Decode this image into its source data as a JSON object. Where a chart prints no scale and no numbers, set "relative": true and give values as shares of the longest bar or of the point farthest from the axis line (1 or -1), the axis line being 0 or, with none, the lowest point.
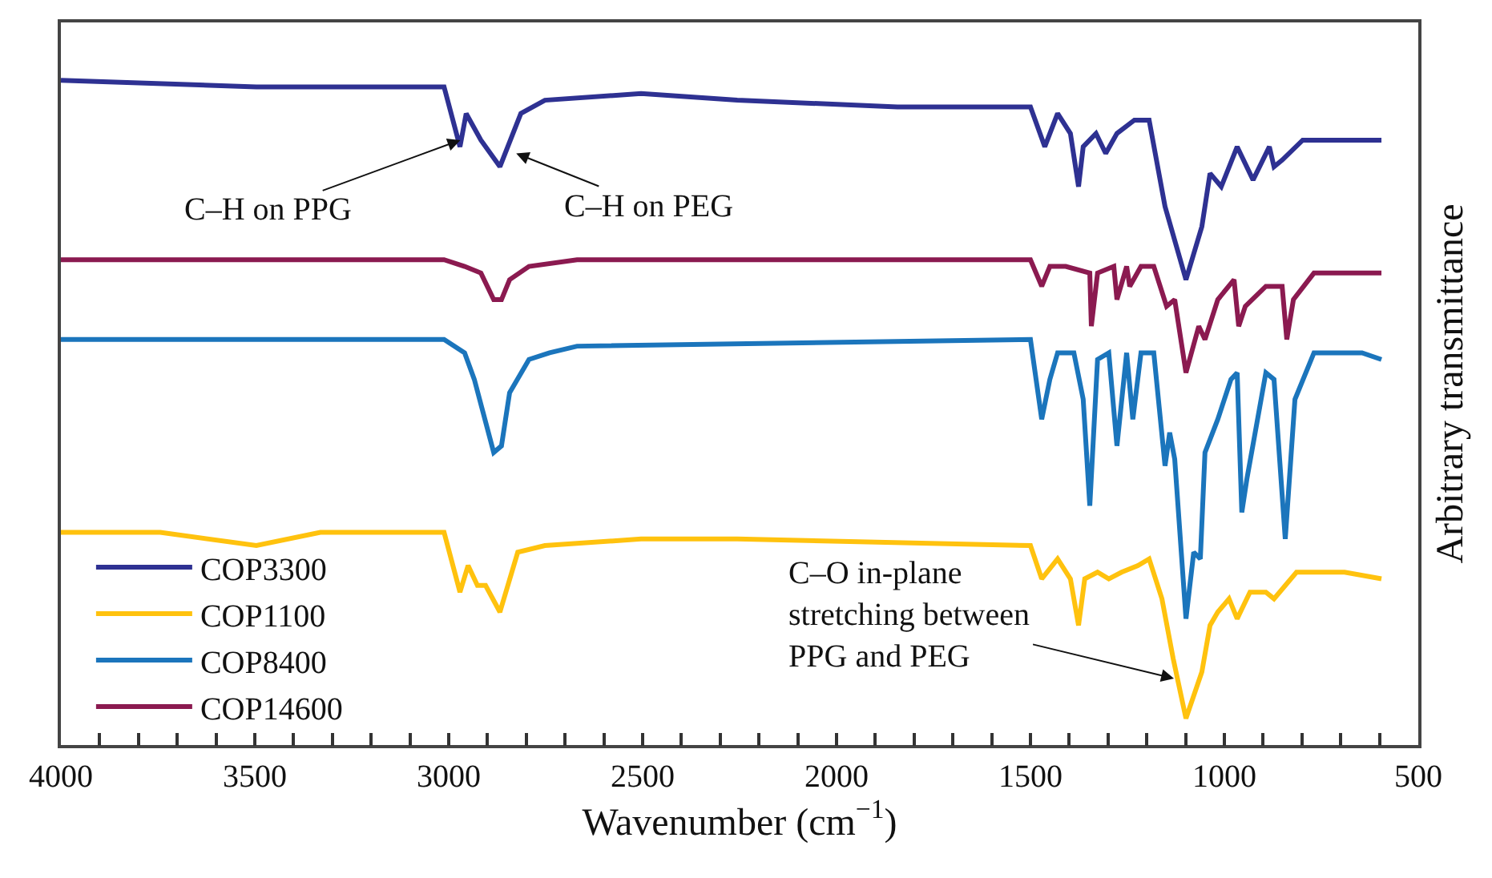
{
  "chart_data": {
    "type": "line",
    "relative": true,
    "xlabel": "Wavenumber (cm$^{−1}$)",
    "ylabel": "Arbitrary transmittance",
    "xlim": [
      4000,
      500
    ],
    "xticks": [
      4000,
      3500,
      3000,
      2500,
      2000,
      1500,
      1000,
      500,
      {
        "value": 3900,
        "label": null
      },
      {
        "value": 3800,
        "label": null
      },
      {
        "value": 3700,
        "label": null
      },
      {
        "value": 3600,
        "label": null
      },
      {
        "value": 3400,
        "label": null
      },
      {
        "value": 3300,
        "label": null
      },
      {
        "value": 3200,
        "label": null
      },
      {
        "value": 3100,
        "label": null
      },
      {
        "value": 2900,
        "label": null
      },
      {
        "value": 2800,
        "label": null
      },
      {
        "value": 2700,
        "label": null
      },
      {
        "value": 2600,
        "label": null
      },
      {
        "value": 2400,
        "label": null
      },
      {
        "value": 2300,
        "label": null
      },
      {
        "value": 2200,
        "label": null
      },
      {
        "value": 2100,
        "label": null
      },
      {
        "value": 1900,
        "label": null
      },
      {
        "value": 1800,
        "label": null
      },
      {
        "value": 1700,
        "label": null
      },
      {
        "value": 1600,
        "label": null
      },
      {
        "value": 1400,
        "label": null
      },
      {
        "value": 1300,
        "label": null
      },
      {
        "value": 1200,
        "label": null
      },
      {
        "value": 1100,
        "label": null
      },
      {
        "value": 900,
        "label": null
      },
      {
        "value": 800,
        "label": null
      },
      {
        "value": 700,
        "label": null
      },
      {
        "value": 600,
        "label": null
      }
    ],
    "tick_labels": "x",
    "legend": "bottom left",
    "marker": "none",
    "line_style": "solid",
    "series": [
      {
        "name": "COP3300",
        "color": "#2e3192",
        "x": [
          4000,
          3496,
          3012,
          2971,
          2955,
          2917,
          2868,
          2814,
          2752,
          2504,
          2256,
          1843,
          1500,
          1463,
          1430,
          1397,
          1376,
          1364,
          1331,
          1306,
          1277,
          1232,
          1194,
          1153,
          1099,
          1058,
          1037,
          1008,
          967,
          926,
          884,
          872,
          851,
          798,
          674,
          595
        ],
        "values": [
          1.0,
          0.99,
          0.99,
          0.9,
          0.95,
          0.91,
          0.87,
          0.95,
          0.97,
          0.98,
          0.97,
          0.96,
          0.96,
          0.9,
          0.95,
          0.92,
          0.84,
          0.9,
          0.92,
          0.89,
          0.92,
          0.94,
          0.94,
          0.81,
          0.7,
          0.78,
          0.86,
          0.84,
          0.9,
          0.85,
          0.9,
          0.87,
          0.88,
          0.91,
          0.91,
          0.91
        ]
      },
      {
        "name": "COP1100",
        "color": "#ffc20e",
        "x": [
          4000,
          3744,
          3496,
          3331,
          3012,
          2971,
          2950,
          2926,
          2905,
          2868,
          2822,
          2752,
          2504,
          2256,
          1500,
          1471,
          1430,
          1397,
          1376,
          1360,
          1327,
          1298,
          1265,
          1223,
          1194,
          1161,
          1132,
          1099,
          1058,
          1037,
          1017,
          988,
          967,
          934,
          893,
          872,
          814,
          690,
          595
        ],
        "values": [
          0.32,
          0.32,
          0.3,
          0.32,
          0.32,
          0.23,
          0.27,
          0.24,
          0.24,
          0.2,
          0.29,
          0.3,
          0.31,
          0.31,
          0.3,
          0.25,
          0.28,
          0.25,
          0.18,
          0.25,
          0.26,
          0.25,
          0.26,
          0.27,
          0.28,
          0.22,
          0.13,
          0.04,
          0.11,
          0.18,
          0.2,
          0.22,
          0.19,
          0.23,
          0.23,
          0.22,
          0.26,
          0.26,
          0.25
        ]
      },
      {
        "name": "COP8400",
        "color": "#1b75bc",
        "x": [
          4000,
          3012,
          2959,
          2934,
          2884,
          2864,
          2843,
          2793,
          2740,
          2669,
          1500,
          1471,
          1450,
          1430,
          1388,
          1364,
          1347,
          1327,
          1298,
          1277,
          1252,
          1236,
          1215,
          1182,
          1153,
          1141,
          1128,
          1099,
          1079,
          1062,
          1050,
          1017,
          983,
          967,
          955,
          942,
          893,
          872,
          843,
          818,
          769,
          645,
          595
        ],
        "values": [
          0.61,
          0.61,
          0.59,
          0.55,
          0.44,
          0.45,
          0.53,
          0.58,
          0.59,
          0.6,
          0.61,
          0.49,
          0.55,
          0.59,
          0.59,
          0.52,
          0.36,
          0.58,
          0.59,
          0.45,
          0.59,
          0.49,
          0.59,
          0.59,
          0.42,
          0.47,
          0.43,
          0.19,
          0.29,
          0.28,
          0.44,
          0.49,
          0.55,
          0.56,
          0.35,
          0.4,
          0.56,
          0.55,
          0.31,
          0.52,
          0.59,
          0.59,
          0.58
        ]
      },
      {
        "name": "COP14600",
        "color": "#8b1a50",
        "x": [
          4000,
          3012,
          2959,
          2917,
          2884,
          2864,
          2843,
          2793,
          2669,
          1500,
          1471,
          1450,
          1409,
          1347,
          1343,
          1327,
          1285,
          1277,
          1252,
          1244,
          1215,
          1182,
          1149,
          1128,
          1099,
          1066,
          1050,
          1017,
          975,
          963,
          946,
          893,
          851,
          839,
          822,
          769,
          595
        ],
        "values": [
          0.73,
          0.73,
          0.72,
          0.71,
          0.67,
          0.67,
          0.7,
          0.72,
          0.73,
          0.73,
          0.69,
          0.72,
          0.72,
          0.71,
          0.63,
          0.71,
          0.72,
          0.67,
          0.72,
          0.69,
          0.72,
          0.72,
          0.66,
          0.67,
          0.56,
          0.63,
          0.61,
          0.67,
          0.7,
          0.63,
          0.66,
          0.69,
          0.69,
          0.61,
          0.67,
          0.71,
          0.71
        ]
      }
    ],
    "annotations": [
      {
        "text": "C–H on PPG",
        "x": 2970,
        "y": 0.91
      },
      {
        "text": "C–H on PEG",
        "x": 2826,
        "y": 0.89
      },
      {
        "text": "C–O in-plane\nstretching between\nPPG and PEG",
        "x": 1130,
        "y": 0.1
      }
    ]
  }
}
